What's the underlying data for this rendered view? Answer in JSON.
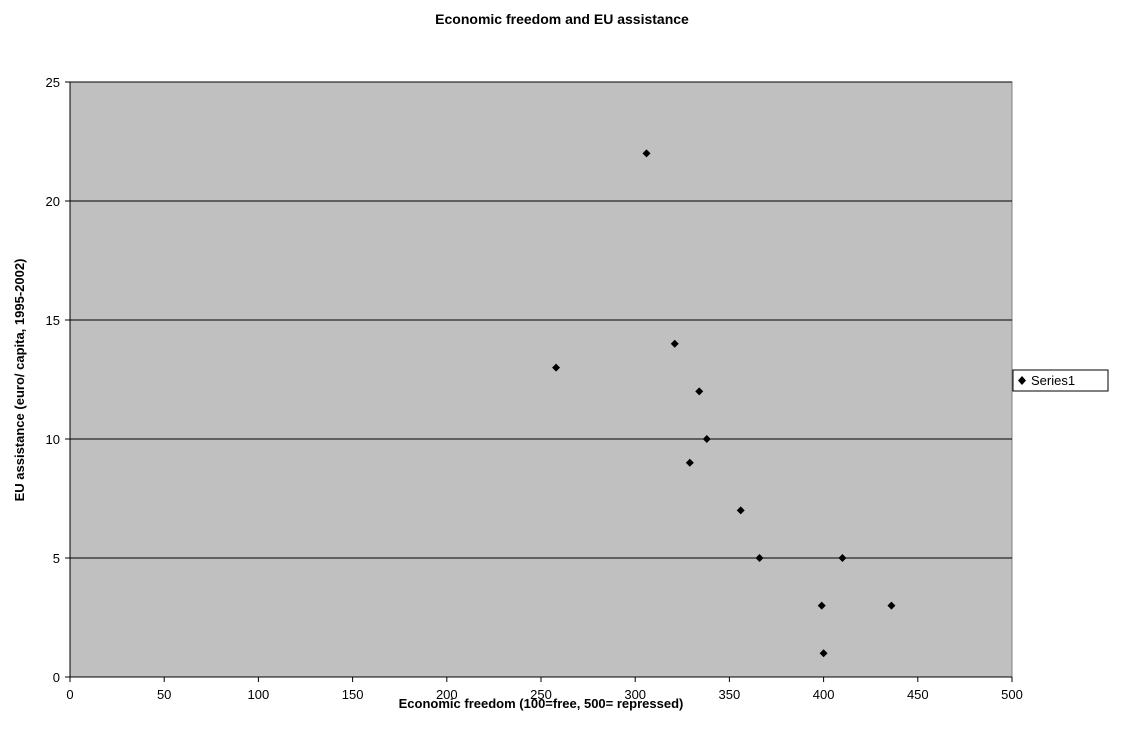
{
  "chart_data": {
    "type": "scatter",
    "title": "Economic freedom and EU assistance",
    "xlabel": "Economic freedom (100=free, 500= repressed)",
    "ylabel": "EU assistance (euro/ capita, 1995-2002)",
    "xlim": [
      0,
      500
    ],
    "ylim": [
      0,
      25
    ],
    "xticks": [
      "0",
      "50",
      "100",
      "150",
      "200",
      "250",
      "300",
      "350",
      "400",
      "450",
      "500"
    ],
    "yticks": [
      "0",
      "5",
      "10",
      "15",
      "20",
      "25"
    ],
    "grid": "horizontal",
    "plot_background": "#c0c0c0",
    "marker_color": "#000000",
    "legend_position": "right",
    "series": [
      {
        "name": "Series1",
        "marker": "diamond",
        "points": [
          {
            "x": 258,
            "y": 13
          },
          {
            "x": 306,
            "y": 22
          },
          {
            "x": 321,
            "y": 14
          },
          {
            "x": 334,
            "y": 12
          },
          {
            "x": 338,
            "y": 10
          },
          {
            "x": 329,
            "y": 9
          },
          {
            "x": 356,
            "y": 7
          },
          {
            "x": 366,
            "y": 5
          },
          {
            "x": 410,
            "y": 5
          },
          {
            "x": 399,
            "y": 3
          },
          {
            "x": 436,
            "y": 3
          },
          {
            "x": 400,
            "y": 1
          }
        ]
      }
    ]
  }
}
